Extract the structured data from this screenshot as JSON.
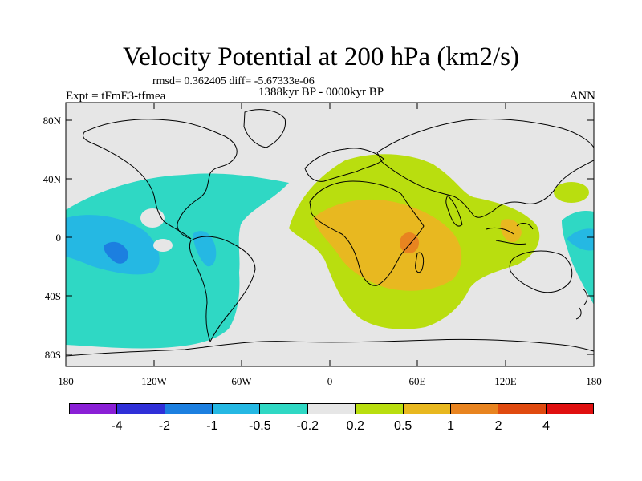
{
  "title": "Velocity Potential at 200 hPa (km2/s)",
  "stats": "rmsd= 0.362405 diff= -5.67333e-06",
  "left_label": "Expt = tFmE3-tfmea",
  "center_label": "1388kyr BP - 0000kyr BP",
  "right_label": "ANN",
  "y_ticks": [
    "80N",
    "40N",
    "0",
    "40S",
    "80S"
  ],
  "x_ticks": [
    "180",
    "120W",
    "60W",
    "0",
    "60E",
    "120E",
    "180"
  ],
  "colorbar": {
    "labels": [
      "-4",
      "-2",
      "-1",
      "-0.5",
      "-0.2",
      "0.2",
      "0.5",
      "1",
      "2",
      "4"
    ],
    "colors": [
      "#8a1fd6",
      "#2f2fd8",
      "#1c7fe0",
      "#25b8e3",
      "#2fd8c4",
      "#e6e6e6",
      "#b9de0f",
      "#e8b820",
      "#e88420",
      "#e04a10",
      "#e01010"
    ]
  },
  "colors": {
    "neutral": "#e6e6e6",
    "cyan_light": "#2fd8c4",
    "cyan_mid": "#25b8e3",
    "blue": "#1c7fe0",
    "yellowgreen": "#b9de0f",
    "orange_light": "#e8b820",
    "orange": "#e88420"
  }
}
